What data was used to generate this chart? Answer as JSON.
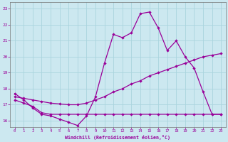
{
  "xlabel": "Windchill (Refroidissement éolien,°C)",
  "xlim": [
    -0.5,
    23.5
  ],
  "ylim": [
    15.6,
    23.4
  ],
  "yticks": [
    16,
    17,
    18,
    19,
    20,
    21,
    22,
    23
  ],
  "xticks": [
    0,
    1,
    2,
    3,
    4,
    5,
    6,
    7,
    8,
    9,
    10,
    11,
    12,
    13,
    14,
    15,
    16,
    17,
    18,
    19,
    20,
    21,
    22,
    23
  ],
  "background_color": "#cce8f0",
  "grid_color": "#aad4de",
  "line_color": "#990099",
  "line1_y": [
    17.7,
    17.3,
    16.8,
    16.4,
    16.3,
    16.1,
    15.9,
    15.7,
    16.3,
    17.5,
    19.6,
    21.4,
    21.2,
    21.5,
    22.7,
    22.8,
    21.8,
    20.4,
    21.0,
    20.0,
    19.3,
    17.8,
    16.4,
    16.4
  ],
  "line2_y": [
    17.5,
    17.4,
    17.3,
    17.2,
    17.1,
    17.05,
    17.0,
    17.0,
    17.1,
    17.3,
    17.5,
    17.8,
    18.0,
    18.3,
    18.5,
    18.8,
    19.0,
    19.2,
    19.4,
    19.6,
    19.8,
    20.0,
    20.1,
    20.2
  ],
  "line3_y": [
    17.3,
    17.1,
    16.9,
    16.5,
    16.4,
    16.4,
    16.4,
    16.4,
    16.4,
    16.4,
    16.4,
    16.4,
    16.4,
    16.4,
    16.4,
    16.4,
    16.4,
    16.4,
    16.4,
    16.4,
    16.4,
    16.4,
    16.4,
    16.4
  ]
}
